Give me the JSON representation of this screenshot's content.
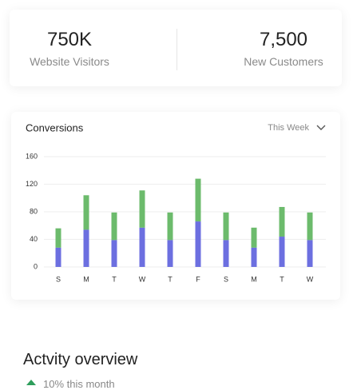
{
  "stats": [
    {
      "value": "750K",
      "label": "Website Visitors"
    },
    {
      "value": "7,500",
      "label": "New Customers"
    }
  ],
  "chart_data": {
    "type": "bar",
    "stacked": true,
    "title": "Conversions",
    "filter": "This Week",
    "categories": [
      "S",
      "M",
      "T",
      "W",
      "T",
      "F",
      "S",
      "M",
      "T",
      "W"
    ],
    "series": [
      {
        "color": "#6c6fe0",
        "values": [
          28,
          54,
          39,
          57,
          39,
          66,
          39,
          28,
          44,
          39
        ]
      },
      {
        "color": "#6cbb6c",
        "values": [
          28,
          50,
          40,
          54,
          40,
          62,
          40,
          29,
          43,
          40
        ]
      }
    ],
    "ylim": [
      0,
      160
    ],
    "yticks": [
      0,
      40,
      80,
      120,
      160
    ],
    "grid": true
  },
  "activity": {
    "title": "Actvity overview",
    "change": "10% this month"
  }
}
